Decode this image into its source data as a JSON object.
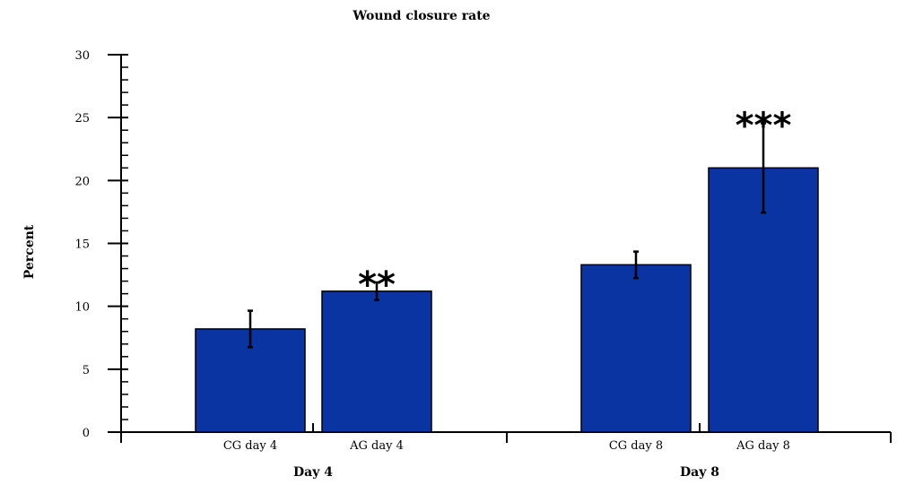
{
  "chart_data": {
    "type": "bar",
    "title": "Wound closure rate",
    "ylabel": "Percent",
    "ylim": [
      0,
      30
    ],
    "yticks": [
      0,
      5,
      10,
      15,
      20,
      25,
      30
    ],
    "categories": [
      "CG day 4",
      "AG day 4",
      "CG day 8",
      "AG day 8"
    ],
    "values": [
      8.2,
      11.2,
      13.3,
      21.0
    ],
    "errors": [
      1.45,
      0.7,
      1.05,
      3.55
    ],
    "significance": [
      "",
      "**",
      "",
      "***"
    ],
    "groups": [
      {
        "label": "Day 4",
        "categories": [
          "CG day 4",
          "AG day 4"
        ]
      },
      {
        "label": "Day 8",
        "categories": [
          "CG day 8",
          "AG day 8"
        ]
      }
    ],
    "bar_color": "#0b34a3",
    "grid": false
  }
}
